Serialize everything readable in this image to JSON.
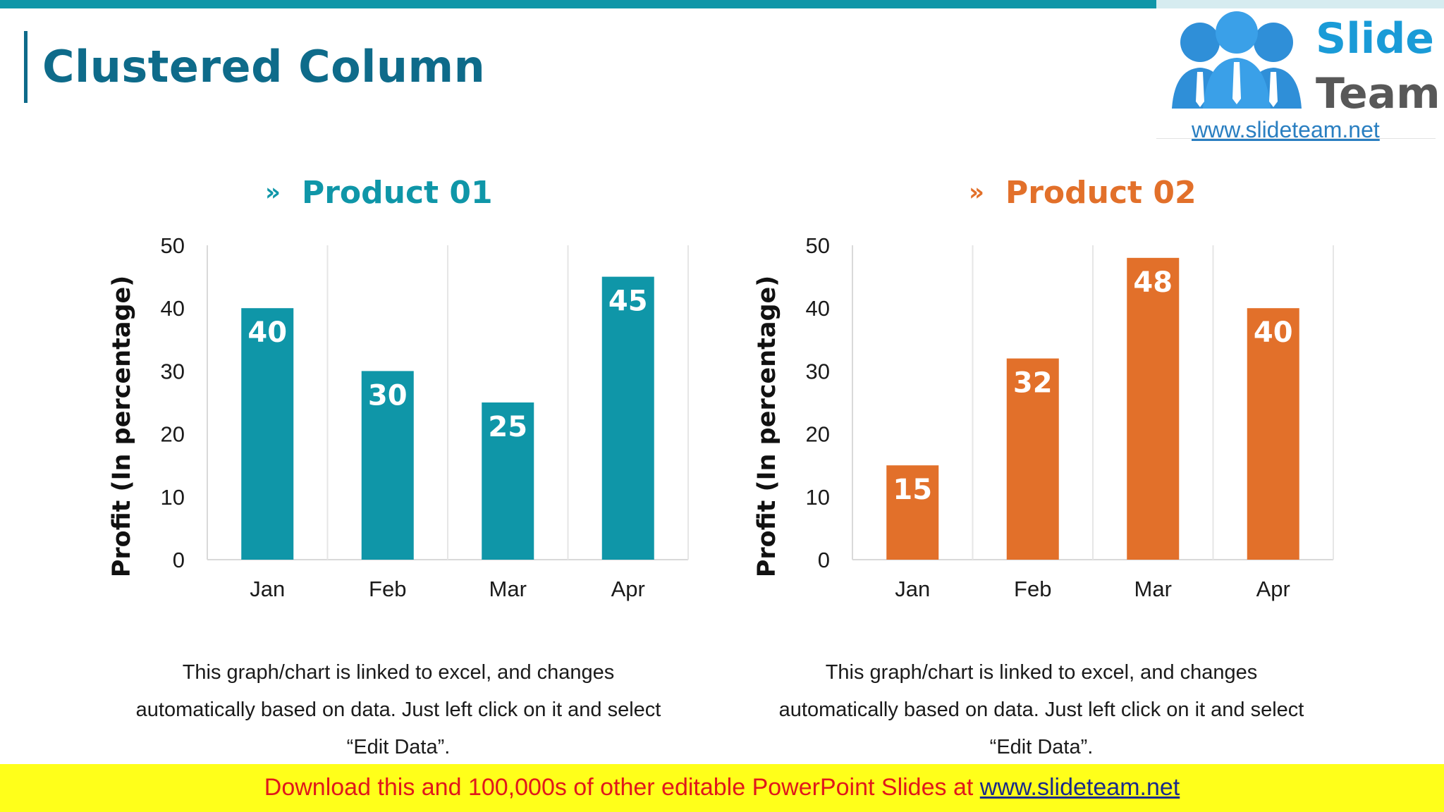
{
  "slide": {
    "title": "Clustered Column"
  },
  "logo": {
    "name_line1": "Slide",
    "name_line2": "Team",
    "url": "www.slideteam.net"
  },
  "colors": {
    "teal": "#0f96a8",
    "orange": "#e2702a",
    "title": "#0e6b8a"
  },
  "chart_data": [
    {
      "type": "bar",
      "title": "Product 01",
      "categories": [
        "Jan",
        "Feb",
        "Mar",
        "Apr"
      ],
      "values": [
        40,
        30,
        25,
        45
      ],
      "xlabel": "",
      "ylabel": "Profit  (In percentage)",
      "ylim": [
        0,
        50
      ],
      "yticks": [
        0,
        10,
        20,
        30,
        40,
        50
      ],
      "color": "#0f96a8",
      "data_labels": true
    },
    {
      "type": "bar",
      "title": "Product 02",
      "categories": [
        "Jan",
        "Feb",
        "Mar",
        "Apr"
      ],
      "values": [
        15,
        32,
        48,
        40
      ],
      "xlabel": "",
      "ylabel": "Profit  (In percentage)",
      "ylim": [
        0,
        50
      ],
      "yticks": [
        0,
        10,
        20,
        30,
        40,
        50
      ],
      "color": "#e2702a",
      "data_labels": true
    }
  ],
  "notes": [
    {
      "line1": "This graph/chart is linked to excel, and changes",
      "line2": "automatically based on data. Just left click on it and select",
      "line3": "“Edit Data”."
    },
    {
      "line1": "This graph/chart is linked to excel, and changes",
      "line2": "automatically based on data. Just left click on it and select",
      "line3": "“Edit Data”."
    }
  ],
  "footer": {
    "text": "Download this and 100,000s of other editable PowerPoint Slides at ",
    "link": "www.slideteam.net"
  }
}
